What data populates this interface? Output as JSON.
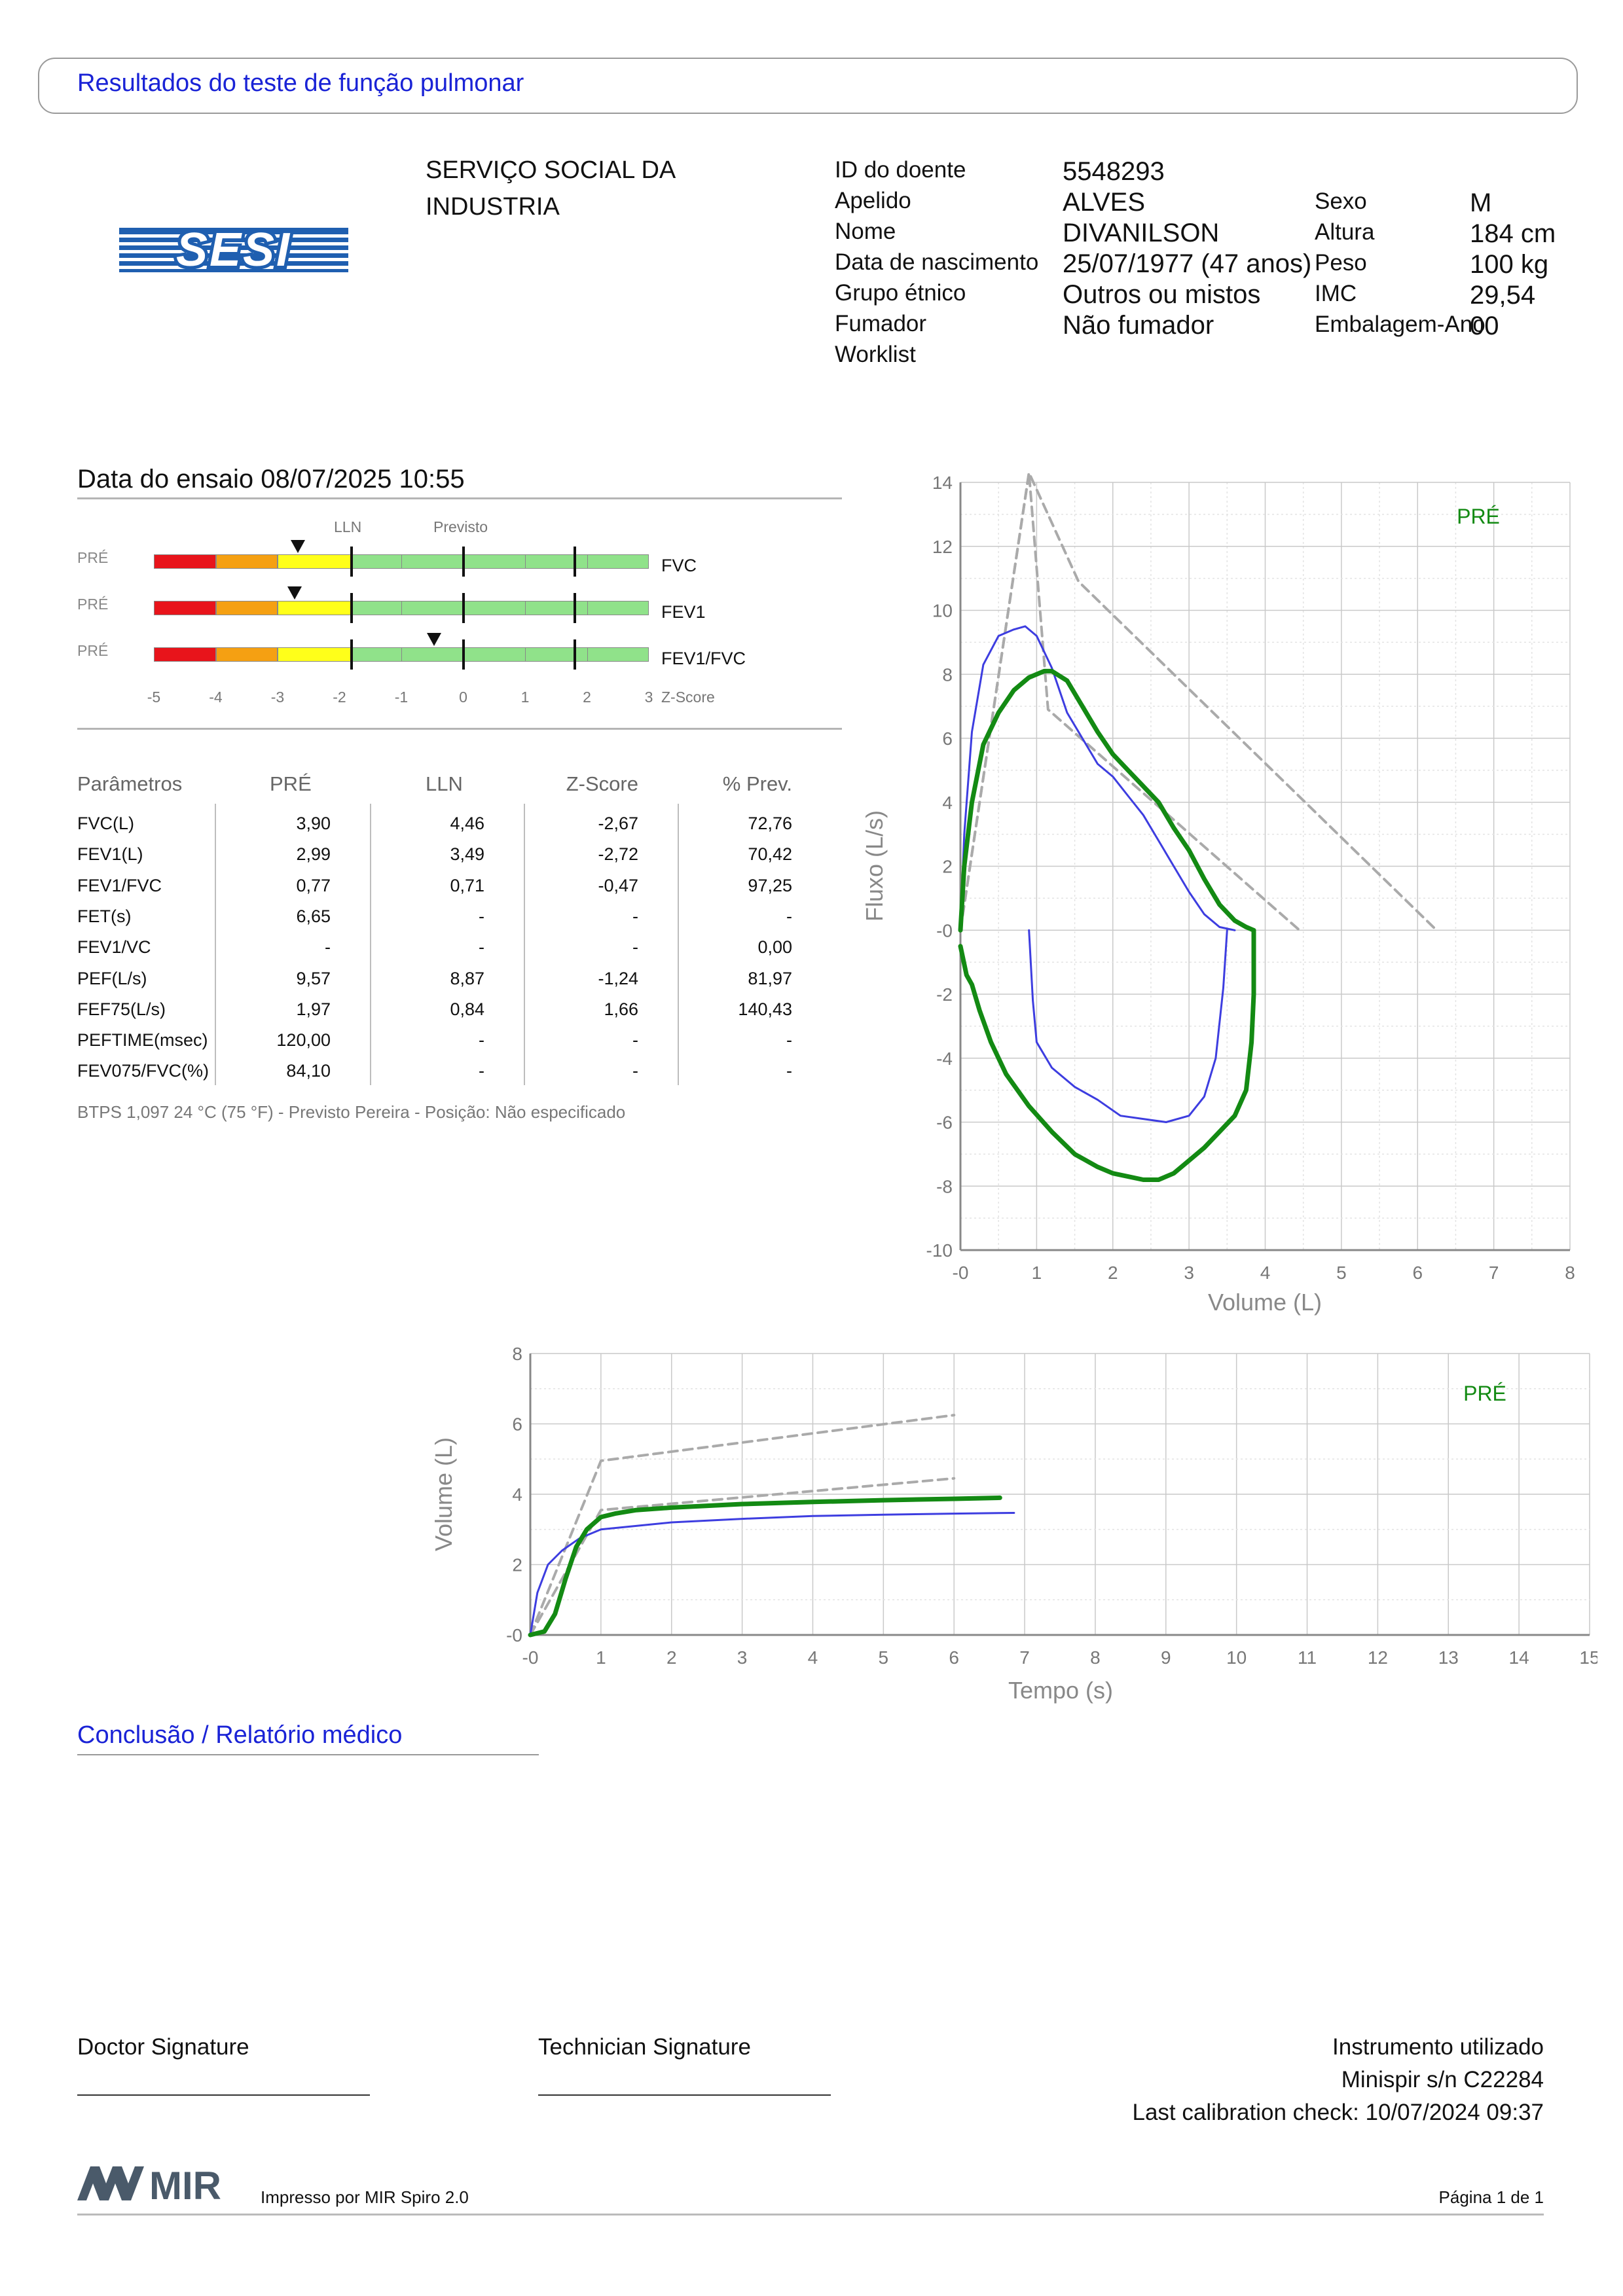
{
  "header": {
    "title": "Resultados do teste de função pulmonar"
  },
  "logo": {
    "text": "SESI",
    "color": "#1f5fb0"
  },
  "organization": {
    "line1": "SERVIÇO SOCIAL DA",
    "line2": "INDUSTRIA"
  },
  "patient": {
    "left": [
      {
        "label": "ID do doente",
        "value": "5548293"
      },
      {
        "label": "Apelido",
        "value": "ALVES"
      },
      {
        "label": "Nome",
        "value": "DIVANILSON"
      },
      {
        "label": "Data de nascimento",
        "value": "25/07/1977 (47 anos)"
      },
      {
        "label": "Grupo étnico",
        "value": "Outros ou mistos"
      },
      {
        "label": "Fumador",
        "value": "Não fumador"
      },
      {
        "label": "Worklist",
        "value": ""
      }
    ],
    "right": [
      {
        "label": "Sexo",
        "value": "M"
      },
      {
        "label": "Altura",
        "value": "184 cm"
      },
      {
        "label": "Peso",
        "value": "100 kg"
      },
      {
        "label": "IMC",
        "value": "29,54"
      },
      {
        "label": "Embalagem-Ano",
        "value": "00"
      }
    ]
  },
  "test_date": "Data do ensaio 08/07/2025 10:55",
  "zscore": {
    "col_lln": "LLN",
    "col_prev": "Previsto",
    "axis_label": "Z-Score",
    "ticks": [
      "-5",
      "-4",
      "-3",
      "-2",
      "-1",
      "0",
      "1",
      "2",
      "3"
    ],
    "rows": [
      {
        "tag": "PRÉ",
        "name": "FVC",
        "z": -2.67
      },
      {
        "tag": "PRÉ",
        "name": "FEV1",
        "z": -2.72
      },
      {
        "tag": "PRÉ",
        "name": "FEV1/FVC",
        "z": -0.47
      }
    ],
    "colors": {
      "red": "#e8141b",
      "orange": "#f5a012",
      "yellow": "#ffff1a",
      "green": "#90e28a"
    }
  },
  "params": {
    "headers": [
      "Parâmetros",
      "PRÉ",
      "LLN",
      "Z-Score",
      "% Prev."
    ],
    "rows": [
      [
        "FVC(L)",
        "3,90",
        "4,46",
        "-2,67",
        "72,76"
      ],
      [
        "FEV1(L)",
        "2,99",
        "3,49",
        "-2,72",
        "70,42"
      ],
      [
        "FEV1/FVC",
        "0,77",
        "0,71",
        "-0,47",
        "97,25"
      ],
      [
        "FET(s)",
        "6,65",
        "-",
        "-",
        "-"
      ],
      [
        "FEV1/VC",
        "-",
        "-",
        "-",
        "0,00"
      ],
      [
        "PEF(L/s)",
        "9,57",
        "8,87",
        "-1,24",
        "81,97"
      ],
      [
        "FEF75(L/s)",
        "1,97",
        "0,84",
        "1,66",
        "140,43"
      ],
      [
        "PEFTIME(msec)",
        "120,00",
        "-",
        "-",
        "-"
      ],
      [
        "FEV075/FVC(%)",
        "84,10",
        "-",
        "-",
        "-"
      ]
    ]
  },
  "btps": "BTPS 1,097 24 °C (75 °F) - Previsto Pereira - Posição: Não especificado",
  "chart_data": [
    {
      "type": "line",
      "title": "",
      "xlabel": "Volume (L)",
      "ylabel": "Fluxo (L/s)",
      "xlim": [
        0,
        8
      ],
      "ylim": [
        -10,
        14
      ],
      "xticks": [
        "-0",
        "1",
        "2",
        "3",
        "4",
        "5",
        "6",
        "7",
        "8"
      ],
      "yticks": [
        "-10",
        "-8",
        "-6",
        "-4",
        "-2",
        "-0",
        "2",
        "4",
        "6",
        "8",
        "10",
        "12",
        "14"
      ],
      "legend": "PRÉ",
      "grid": true,
      "series": [
        {
          "name": "PRÉ",
          "color": "#138a13",
          "x": [
            0,
            0.05,
            0.15,
            0.3,
            0.5,
            0.7,
            0.9,
            1.1,
            1.2,
            1.4,
            1.6,
            1.8,
            2.0,
            2.2,
            2.4,
            2.6,
            2.8,
            3.0,
            3.2,
            3.4,
            3.6,
            3.75,
            3.85,
            3.85,
            3.82,
            3.75,
            3.6,
            3.4,
            3.2,
            3.0,
            2.8,
            2.6,
            2.4,
            2.2,
            2.0,
            1.8,
            1.5,
            1.2,
            0.9,
            0.6,
            0.4,
            0.25,
            0.15,
            0.08,
            0
          ],
          "y": [
            0,
            2,
            4,
            5.8,
            6.8,
            7.5,
            7.9,
            8.1,
            8.1,
            7.8,
            7.0,
            6.2,
            5.5,
            5.0,
            4.5,
            4.0,
            3.2,
            2.5,
            1.6,
            0.8,
            0.3,
            0.1,
            0,
            -2,
            -3.5,
            -5,
            -5.8,
            -6.3,
            -6.8,
            -7.2,
            -7.6,
            -7.8,
            -7.8,
            -7.7,
            -7.6,
            -7.4,
            -7.0,
            -6.3,
            -5.5,
            -4.5,
            -3.5,
            -2.5,
            -1.7,
            -1.4,
            -0.5
          ]
        },
        {
          "name": "",
          "color": "#3d3de0",
          "x": [
            0,
            0.05,
            0.15,
            0.3,
            0.5,
            0.7,
            0.85,
            1.0,
            1.2,
            1.4,
            1.6,
            1.8,
            2.0,
            2.2,
            2.4,
            2.6,
            2.8,
            3.0,
            3.2,
            3.4,
            3.6
          ],
          "y": [
            0,
            3,
            6.2,
            8.3,
            9.2,
            9.4,
            9.5,
            9.2,
            8.2,
            6.8,
            6.0,
            5.2,
            4.8,
            4.2,
            3.6,
            2.8,
            2.0,
            1.2,
            0.5,
            0.1,
            0
          ]
        },
        {
          "name": "",
          "color": "#3d3de0",
          "x": [
            0.9,
            0.95,
            1.0,
            1.2,
            1.5,
            1.8,
            2.1,
            2.4,
            2.7,
            3.0,
            3.2,
            3.35,
            3.45,
            3.5
          ],
          "y": [
            0,
            -2.2,
            -3.5,
            -4.3,
            -4.9,
            -5.3,
            -5.8,
            -5.9,
            -6.0,
            -5.8,
            -5.2,
            -4.0,
            -1.8,
            0
          ]
        },
        {
          "name": "",
          "color": "#aaaaaa",
          "dashed": true,
          "x": [
            0,
            0.9,
            1.55,
            6.25
          ],
          "y": [
            0,
            14.3,
            10.9,
            0
          ]
        },
        {
          "name": "",
          "color": "#aaaaaa",
          "dashed": true,
          "x": [
            0,
            0.9,
            1.15,
            4.45
          ],
          "y": [
            0,
            14.3,
            6.9,
            0
          ]
        }
      ]
    },
    {
      "type": "line",
      "title": "",
      "xlabel": "Tempo (s)",
      "ylabel": "Volume (L)",
      "xlim": [
        0,
        15
      ],
      "ylim": [
        0,
        8
      ],
      "xticks": [
        "-0",
        "1",
        "2",
        "3",
        "4",
        "5",
        "6",
        "7",
        "8",
        "9",
        "10",
        "11",
        "12",
        "13",
        "14",
        "15"
      ],
      "yticks": [
        "-0",
        "2",
        "4",
        "6",
        "8"
      ],
      "legend": "PRÉ",
      "grid": true,
      "series": [
        {
          "name": "PRÉ",
          "color": "#138a13",
          "x": [
            0,
            0.2,
            0.35,
            0.5,
            0.65,
            0.8,
            1.0,
            1.2,
            1.5,
            2.0,
            3.0,
            4.0,
            5.0,
            6.0,
            6.65
          ],
          "y": [
            0,
            0.1,
            0.6,
            1.6,
            2.5,
            3.0,
            3.35,
            3.45,
            3.55,
            3.62,
            3.72,
            3.78,
            3.83,
            3.87,
            3.9
          ]
        },
        {
          "name": "",
          "color": "#3d3de0",
          "x": [
            0,
            0.1,
            0.25,
            0.45,
            0.7,
            1.0,
            1.5,
            2.0,
            3.0,
            4.0,
            5.0,
            6.0,
            6.85
          ],
          "y": [
            0,
            1.2,
            2.0,
            2.4,
            2.75,
            3.0,
            3.1,
            3.2,
            3.3,
            3.38,
            3.42,
            3.45,
            3.47
          ]
        },
        {
          "name": "",
          "color": "#aaaaaa",
          "dashed": true,
          "x": [
            0,
            1.0,
            6.0
          ],
          "y": [
            0,
            4.95,
            6.25
          ]
        },
        {
          "name": "",
          "color": "#aaaaaa",
          "dashed": true,
          "x": [
            0,
            1.0,
            6.0
          ],
          "y": [
            0,
            3.55,
            4.45
          ]
        }
      ]
    }
  ],
  "conclusion": {
    "title": "Conclusão / Relatório médico"
  },
  "signatures": {
    "doctor": "Doctor Signature",
    "technician": "Technician Signature",
    "instrument_title": "Instrumento utilizado",
    "instrument": "Minispir s/n C22284",
    "calibration": "Last calibration check: 10/07/2024 09:37"
  },
  "footer": {
    "brand": "MIR",
    "printed_by": "Impresso por MIR Spiro 2.0",
    "page": "Página 1 de 1"
  }
}
